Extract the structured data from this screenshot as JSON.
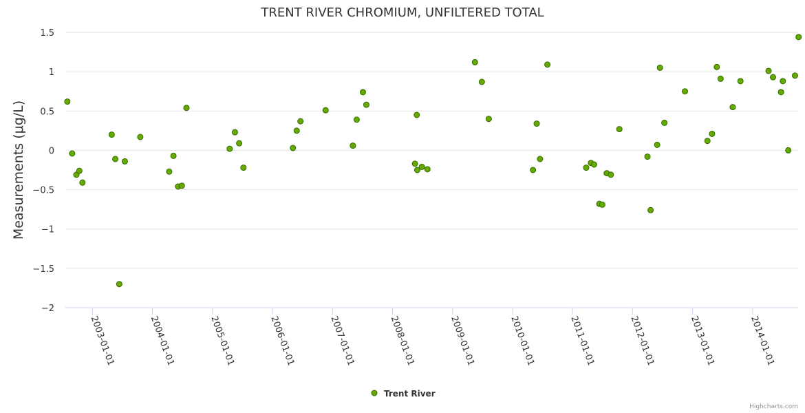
{
  "credits": "Highcharts.com",
  "chart_data": {
    "type": "scatter",
    "title": "TRENT RIVER CHROMIUM, UNFILTERED TOTAL",
    "ylabel": "Measurements (μg/L)",
    "xlabel": "",
    "ylim": [
      -2,
      1.5
    ],
    "xlim": [
      "2002-07-20",
      "2014-10-05"
    ],
    "yticks": [
      1.5,
      1,
      0.5,
      0,
      -0.5,
      -1,
      -1.5,
      -2
    ],
    "ytick_labels": [
      "1.5",
      "1",
      "0.5",
      "0",
      "−0.5",
      "−1",
      "−1.5",
      "−2"
    ],
    "xticks": [
      "2003-01-01",
      "2004-01-01",
      "2005-01-01",
      "2006-01-01",
      "2007-01-01",
      "2008-01-01",
      "2009-01-01",
      "2010-01-01",
      "2011-01-01",
      "2012-01-01",
      "2013-01-01",
      "2014-01-01"
    ],
    "grid": true,
    "legend_position": "bottom-center",
    "marker_color": "#66aa00",
    "marker_stroke": "#2f6b00",
    "series": [
      {
        "name": "Trent River",
        "points": [
          {
            "x": "2002-08-01",
            "y": 0.62
          },
          {
            "x": "2002-08-30",
            "y": -0.04
          },
          {
            "x": "2002-09-25",
            "y": -0.31
          },
          {
            "x": "2002-10-13",
            "y": -0.26
          },
          {
            "x": "2002-11-01",
            "y": -0.41
          },
          {
            "x": "2003-04-28",
            "y": 0.2
          },
          {
            "x": "2003-05-20",
            "y": -0.11
          },
          {
            "x": "2003-06-13",
            "y": -1.7
          },
          {
            "x": "2003-07-17",
            "y": -0.14
          },
          {
            "x": "2003-10-19",
            "y": 0.17
          },
          {
            "x": "2004-04-12",
            "y": -0.27
          },
          {
            "x": "2004-05-08",
            "y": -0.07
          },
          {
            "x": "2004-06-05",
            "y": -0.46
          },
          {
            "x": "2004-06-28",
            "y": -0.45
          },
          {
            "x": "2004-07-26",
            "y": 0.54
          },
          {
            "x": "2005-04-15",
            "y": 0.02
          },
          {
            "x": "2005-05-17",
            "y": 0.23
          },
          {
            "x": "2005-06-12",
            "y": 0.09
          },
          {
            "x": "2005-07-08",
            "y": -0.22
          },
          {
            "x": "2006-05-05",
            "y": 0.03
          },
          {
            "x": "2006-05-28",
            "y": 0.25
          },
          {
            "x": "2006-06-20",
            "y": 0.37
          },
          {
            "x": "2006-11-20",
            "y": 0.51
          },
          {
            "x": "2007-05-05",
            "y": 0.06
          },
          {
            "x": "2007-05-28",
            "y": 0.39
          },
          {
            "x": "2007-07-05",
            "y": 0.74
          },
          {
            "x": "2007-07-26",
            "y": 0.58
          },
          {
            "x": "2008-05-17",
            "y": -0.17
          },
          {
            "x": "2008-05-28",
            "y": 0.45
          },
          {
            "x": "2008-05-31",
            "y": -0.25
          },
          {
            "x": "2008-06-28",
            "y": -0.21
          },
          {
            "x": "2008-08-01",
            "y": -0.24
          },
          {
            "x": "2009-05-17",
            "y": 1.12
          },
          {
            "x": "2009-06-28",
            "y": 0.87
          },
          {
            "x": "2009-08-09",
            "y": 0.4
          },
          {
            "x": "2010-05-05",
            "y": -0.25
          },
          {
            "x": "2010-05-28",
            "y": 0.34
          },
          {
            "x": "2010-06-17",
            "y": -0.11
          },
          {
            "x": "2010-08-01",
            "y": 1.09
          },
          {
            "x": "2011-03-25",
            "y": -0.22
          },
          {
            "x": "2011-04-23",
            "y": -0.16
          },
          {
            "x": "2011-05-12",
            "y": -0.18
          },
          {
            "x": "2011-06-13",
            "y": -0.68
          },
          {
            "x": "2011-07-01",
            "y": -0.69
          },
          {
            "x": "2011-07-28",
            "y": -0.29
          },
          {
            "x": "2011-08-22",
            "y": -0.31
          },
          {
            "x": "2011-10-13",
            "y": 0.27
          },
          {
            "x": "2012-04-01",
            "y": -0.08
          },
          {
            "x": "2012-04-20",
            "y": -0.76
          },
          {
            "x": "2012-05-30",
            "y": 0.07
          },
          {
            "x": "2012-06-16",
            "y": 1.05
          },
          {
            "x": "2012-07-13",
            "y": 0.35
          },
          {
            "x": "2012-11-15",
            "y": 0.75
          },
          {
            "x": "2013-04-01",
            "y": 0.12
          },
          {
            "x": "2013-04-29",
            "y": 0.21
          },
          {
            "x": "2013-05-28",
            "y": 1.06
          },
          {
            "x": "2013-06-20",
            "y": 0.91
          },
          {
            "x": "2013-09-02",
            "y": 0.55
          },
          {
            "x": "2013-10-19",
            "y": 0.88
          },
          {
            "x": "2014-04-08",
            "y": 1.01
          },
          {
            "x": "2014-05-05",
            "y": 0.93
          },
          {
            "x": "2014-06-23",
            "y": 0.74
          },
          {
            "x": "2014-07-04",
            "y": 0.88
          },
          {
            "x": "2014-08-06",
            "y": 0.0
          },
          {
            "x": "2014-09-16",
            "y": 0.95
          },
          {
            "x": "2014-10-08",
            "y": 1.44
          }
        ]
      }
    ]
  }
}
